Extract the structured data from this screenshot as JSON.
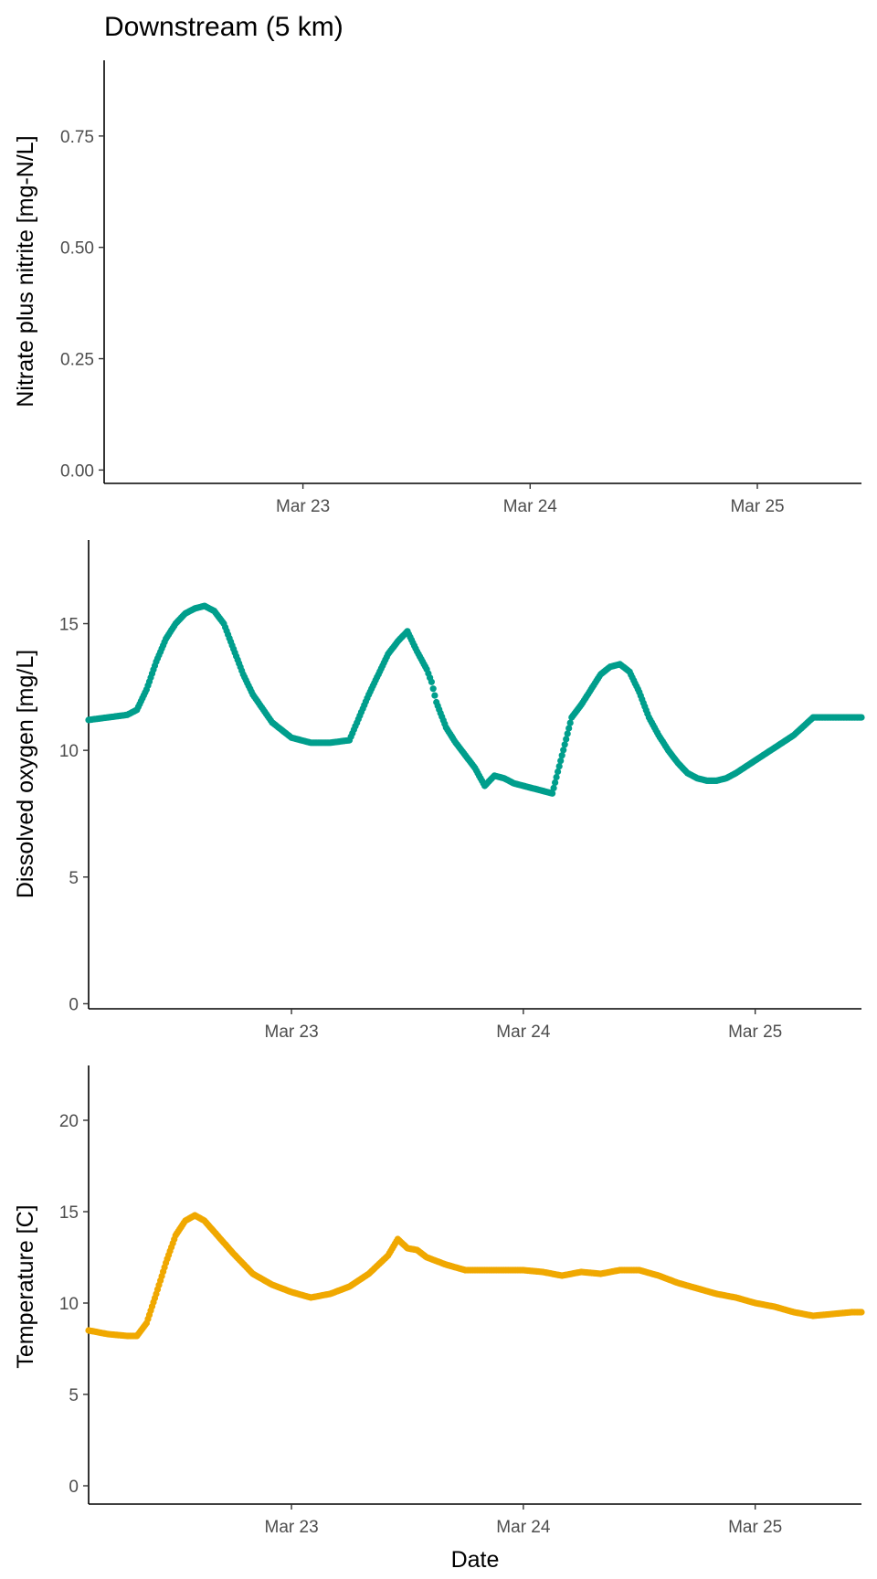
{
  "title": "Downstream (5 km)",
  "xlabel": "Date",
  "colors": {
    "do": "#009E8C",
    "temp": "#F0A800",
    "axis": "#000000",
    "tick_text": "#4d4d4d"
  },
  "chart_data": [
    {
      "type": "scatter",
      "ylabel": "Nitrate plus nitrite [mg-N/L]",
      "x_ticks": [
        "Mar 23",
        "Mar 24",
        "Mar 25"
      ],
      "x_tick_dates": [
        "2020-03-23",
        "2020-03-24",
        "2020-03-25"
      ],
      "xlim": [
        "2020-03-22 03:00",
        "2020-03-25 11:00"
      ],
      "ylim": [
        -0.03,
        0.92
      ],
      "y_ticks": [
        0.0,
        0.25,
        0.5,
        0.75
      ],
      "y_tick_labels": [
        "0.00",
        "0.25",
        "0.50",
        "0.75"
      ],
      "series": []
    },
    {
      "type": "scatter",
      "ylabel": "Dissolved oxygen [mg/L]",
      "x_ticks": [
        "Mar 23",
        "Mar 24",
        "Mar 25"
      ],
      "x_tick_dates": [
        "2020-03-23",
        "2020-03-24",
        "2020-03-25"
      ],
      "xlim": [
        "2020-03-22 03:00",
        "2020-03-25 11:00"
      ],
      "ylim": [
        -0.2,
        18.3
      ],
      "y_ticks": [
        0,
        5,
        10,
        15
      ],
      "y_tick_labels": [
        "0",
        "5",
        "10",
        "15"
      ],
      "series": [
        {
          "color": "#009E8C",
          "x": [
            "2020-03-22 03:00",
            "2020-03-22 05:00",
            "2020-03-22 07:00",
            "2020-03-22 08:00",
            "2020-03-22 09:00",
            "2020-03-22 10:00",
            "2020-03-22 11:00",
            "2020-03-22 12:00",
            "2020-03-22 13:00",
            "2020-03-22 14:00",
            "2020-03-22 15:00",
            "2020-03-22 16:00",
            "2020-03-22 17:00",
            "2020-03-22 18:00",
            "2020-03-22 19:00",
            "2020-03-22 20:00",
            "2020-03-22 22:00",
            "2020-03-23 00:00",
            "2020-03-23 02:00",
            "2020-03-23 04:00",
            "2020-03-23 06:00",
            "2020-03-23 08:00",
            "2020-03-23 09:00",
            "2020-03-23 10:00",
            "2020-03-23 11:00",
            "2020-03-23 12:00",
            "2020-03-23 13:00",
            "2020-03-23 14:00",
            "2020-03-23 14:30",
            "2020-03-23 15:00",
            "2020-03-23 16:00",
            "2020-03-23 17:00",
            "2020-03-23 18:00",
            "2020-03-23 19:00",
            "2020-03-23 20:00",
            "2020-03-23 21:00",
            "2020-03-23 22:00",
            "2020-03-23 23:00",
            "2020-03-24 00:00",
            "2020-03-24 01:00",
            "2020-03-24 02:00",
            "2020-03-24 03:00",
            "2020-03-24 04:00",
            "2020-03-24 05:00",
            "2020-03-24 06:00",
            "2020-03-24 07:00",
            "2020-03-24 08:00",
            "2020-03-24 09:00",
            "2020-03-24 10:00",
            "2020-03-24 11:00",
            "2020-03-24 12:00",
            "2020-03-24 13:00",
            "2020-03-24 14:00",
            "2020-03-24 15:00",
            "2020-03-24 16:00",
            "2020-03-24 17:00",
            "2020-03-24 18:00",
            "2020-03-24 19:00",
            "2020-03-24 20:00",
            "2020-03-24 21:00",
            "2020-03-24 22:00",
            "2020-03-25 00:00",
            "2020-03-25 02:00",
            "2020-03-25 04:00",
            "2020-03-25 06:00",
            "2020-03-25 07:00",
            "2020-03-25 08:00",
            "2020-03-25 09:00",
            "2020-03-25 10:00",
            "2020-03-25 11:00"
          ],
          "y": [
            11.2,
            11.3,
            11.4,
            11.6,
            12.4,
            13.5,
            14.4,
            15.0,
            15.4,
            15.6,
            15.7,
            15.5,
            15.0,
            14.0,
            13.0,
            12.2,
            11.1,
            10.5,
            10.3,
            10.3,
            10.4,
            12.2,
            13.0,
            13.8,
            14.3,
            14.7,
            13.9,
            13.2,
            12.7,
            11.9,
            10.9,
            10.3,
            9.8,
            9.3,
            8.6,
            9.0,
            8.9,
            8.7,
            8.6,
            8.5,
            8.4,
            8.3,
            9.8,
            11.3,
            11.8,
            12.4,
            13.0,
            13.3,
            13.4,
            13.1,
            12.3,
            11.3,
            10.6,
            10.0,
            9.5,
            9.1,
            8.9,
            8.8,
            8.8,
            8.9,
            9.1,
            9.6,
            10.1,
            10.6,
            11.3,
            11.3,
            11.3,
            11.3,
            11.3,
            11.3
          ]
        }
      ]
    },
    {
      "type": "scatter",
      "ylabel": "Temperature [C]",
      "x_ticks": [
        "Mar 23",
        "Mar 24",
        "Mar 25"
      ],
      "x_tick_dates": [
        "2020-03-23",
        "2020-03-24",
        "2020-03-25"
      ],
      "xlim": [
        "2020-03-22 03:00",
        "2020-03-25 11:00"
      ],
      "ylim": [
        -1.0,
        23.0
      ],
      "y_ticks": [
        0,
        5,
        10,
        15,
        20
      ],
      "y_tick_labels": [
        "0",
        "5",
        "10",
        "15",
        "20"
      ],
      "series": [
        {
          "color": "#F0A800",
          "x": [
            "2020-03-22 03:00",
            "2020-03-22 05:00",
            "2020-03-22 07:00",
            "2020-03-22 08:00",
            "2020-03-22 09:00",
            "2020-03-22 10:00",
            "2020-03-22 11:00",
            "2020-03-22 12:00",
            "2020-03-22 13:00",
            "2020-03-22 14:00",
            "2020-03-22 15:00",
            "2020-03-22 16:00",
            "2020-03-22 17:00",
            "2020-03-22 18:00",
            "2020-03-22 20:00",
            "2020-03-22 22:00",
            "2020-03-23 00:00",
            "2020-03-23 02:00",
            "2020-03-23 04:00",
            "2020-03-23 06:00",
            "2020-03-23 08:00",
            "2020-03-23 10:00",
            "2020-03-23 11:00",
            "2020-03-23 12:00",
            "2020-03-23 13:00",
            "2020-03-23 14:00",
            "2020-03-23 16:00",
            "2020-03-23 18:00",
            "2020-03-23 20:00",
            "2020-03-23 22:00",
            "2020-03-24 00:00",
            "2020-03-24 02:00",
            "2020-03-24 04:00",
            "2020-03-24 06:00",
            "2020-03-24 08:00",
            "2020-03-24 10:00",
            "2020-03-24 12:00",
            "2020-03-24 14:00",
            "2020-03-24 16:00",
            "2020-03-24 18:00",
            "2020-03-24 20:00",
            "2020-03-24 22:00",
            "2020-03-25 00:00",
            "2020-03-25 02:00",
            "2020-03-25 04:00",
            "2020-03-25 06:00",
            "2020-03-25 08:00",
            "2020-03-25 10:00",
            "2020-03-25 11:00"
          ],
          "y": [
            8.5,
            8.3,
            8.2,
            8.2,
            8.9,
            10.5,
            12.2,
            13.7,
            14.5,
            14.8,
            14.5,
            13.9,
            13.3,
            12.7,
            11.6,
            11.0,
            10.6,
            10.3,
            10.5,
            10.9,
            11.6,
            12.6,
            13.5,
            13.0,
            12.9,
            12.5,
            12.1,
            11.8,
            11.8,
            11.8,
            11.8,
            11.7,
            11.5,
            11.7,
            11.6,
            11.8,
            11.8,
            11.5,
            11.1,
            10.8,
            10.5,
            10.3,
            10.0,
            9.8,
            9.5,
            9.3,
            9.4,
            9.5,
            9.5
          ]
        }
      ]
    }
  ]
}
